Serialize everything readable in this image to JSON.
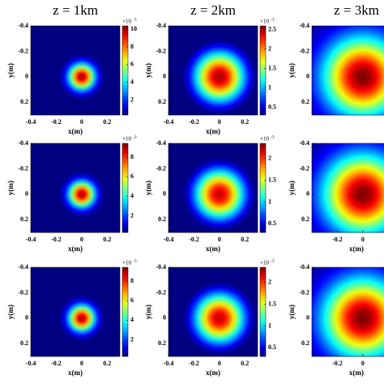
{
  "chart_data": [
    {
      "type": "heatmap",
      "title": "z = 1km",
      "xlabel": "x(m)",
      "ylabel": "y(m)",
      "xlim": [
        -0.4,
        0.3
      ],
      "ylim": [
        -0.4,
        0.3
      ],
      "xticks": [
        -0.4,
        -0.2,
        0,
        0.2
      ],
      "yticks": [
        -0.4,
        -0.2,
        0,
        0.2
      ],
      "peak": 10,
      "beam_radius": 0.1,
      "clim": [
        0.3,
        10.4
      ],
      "cticks": [
        2,
        4,
        6,
        8,
        10
      ],
      "colorbar_scale": {
        "base": "×10",
        "exponent": "-3"
      }
    },
    {
      "type": "heatmap",
      "title": "z = 2km",
      "xlabel": "x(m)",
      "ylabel": "y(m)",
      "xlim": [
        -0.4,
        0.3
      ],
      "ylim": [
        -0.4,
        0.3
      ],
      "xticks": [
        -0.4,
        -0.2,
        0,
        0.2
      ],
      "yticks": [
        -0.4,
        -0.2,
        0,
        0.2
      ],
      "peak": 2.5,
      "beam_radius": 0.2,
      "clim": [
        0.3,
        2.6
      ],
      "cticks": [
        0.5,
        1,
        1.5,
        2,
        2.5
      ],
      "colorbar_scale": {
        "base": "×10",
        "exponent": "-3"
      }
    },
    {
      "type": "heatmap",
      "title": "z = 3km",
      "ylabel": "y(m)",
      "xlim": [
        -0.4,
        0.3
      ],
      "ylim": [
        -0.4,
        0.3
      ],
      "yticks": [
        -0.4,
        -0.2,
        0,
        0.2
      ],
      "beam_radius": 0.3
    },
    {
      "type": "heatmap",
      "xlabel": "x(m)",
      "ylabel": "y(m)",
      "xlim": [
        -0.4,
        0.3
      ],
      "ylim": [
        -0.4,
        0.3
      ],
      "xticks": [
        -0.4,
        -0.2,
        0,
        0.2
      ],
      "yticks": [
        -0.4,
        -0.2,
        0,
        0.2
      ],
      "peak": 9,
      "beam_radius": 0.1,
      "clim": [
        0.3,
        9.4
      ],
      "cticks": [
        2,
        4,
        6,
        8
      ],
      "colorbar_scale": {
        "base": "×10",
        "exponent": "-3"
      }
    },
    {
      "type": "heatmap",
      "xlabel": "x(m)",
      "ylabel": "y(m)",
      "xlim": [
        -0.4,
        0.3
      ],
      "ylim": [
        -0.4,
        0.3
      ],
      "xticks": [
        -0.4,
        -0.2,
        0,
        0.2
      ],
      "yticks": [
        -0.4,
        -0.2,
        0,
        0.2
      ],
      "peak": 2.2,
      "beam_radius": 0.2,
      "clim": [
        0.3,
        2.35
      ],
      "cticks": [
        0.5,
        1,
        1.5,
        2
      ],
      "colorbar_scale": {
        "base": "×10",
        "exponent": "-3"
      }
    },
    {
      "type": "heatmap",
      "xlabel": "x(m)",
      "ylabel": "y(m)",
      "xlim": [
        -0.4,
        0.3
      ],
      "ylim": [
        -0.4,
        0.3
      ],
      "xticks": [
        -0.2,
        0
      ],
      "yticks": [
        -0.4,
        -0.2,
        0,
        0.2
      ],
      "beam_radius": 0.3
    },
    {
      "type": "heatmap",
      "xlabel": "x(m)",
      "ylabel": "y(m)",
      "xlim": [
        -0.4,
        0.3
      ],
      "ylim": [
        -0.4,
        0.3
      ],
      "xticks": [
        -0.4,
        -0.2,
        0,
        0.2
      ],
      "yticks": [
        -0.4,
        -0.2,
        0,
        0.2
      ],
      "peak": 9,
      "beam_radius": 0.1,
      "clim": [
        0.3,
        9.4
      ],
      "cticks": [
        2,
        4,
        6,
        8
      ],
      "colorbar_scale": {
        "base": "×10",
        "exponent": "-3"
      }
    },
    {
      "type": "heatmap",
      "xlabel": "x(m)",
      "ylabel": "y(m)",
      "xlim": [
        -0.4,
        0.3
      ],
      "ylim": [
        -0.4,
        0.3
      ],
      "xticks": [
        -0.4,
        -0.2,
        0,
        0.2
      ],
      "yticks": [
        -0.4,
        -0.2,
        0,
        0.2
      ],
      "peak": 2.2,
      "beam_radius": 0.2,
      "clim": [
        0.3,
        2.35
      ],
      "cticks": [
        0.5,
        1,
        1.5,
        2
      ],
      "colorbar_scale": {
        "base": "×10",
        "exponent": "-3"
      }
    },
    {
      "type": "heatmap",
      "xlabel": "x(m)",
      "ylabel": "y(m)",
      "xlim": [
        -0.4,
        0.3
      ],
      "ylim": [
        -0.4,
        0.3
      ],
      "xticks": [
        -0.2,
        0
      ],
      "yticks": [
        -0.4,
        -0.2,
        0,
        0.2
      ],
      "beam_radius": 0.3
    }
  ]
}
